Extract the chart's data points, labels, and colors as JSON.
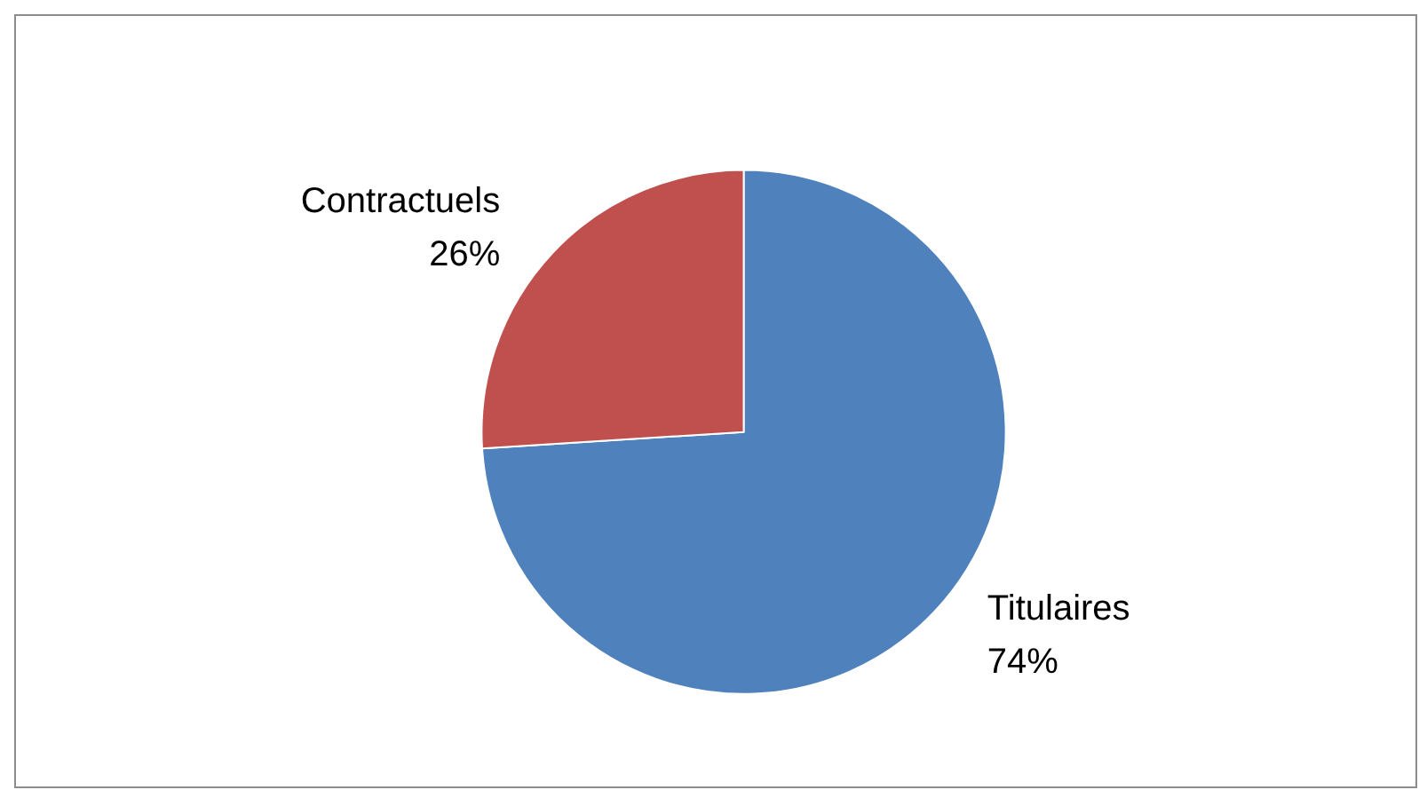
{
  "chart_data": {
    "type": "pie",
    "categories": [
      "Titulaires",
      "Contractuels"
    ],
    "values": [
      74,
      26
    ],
    "colors": [
      "#4f81bd",
      "#c0504d"
    ],
    "value_labels": [
      "74%",
      "26%"
    ],
    "legend": false
  }
}
